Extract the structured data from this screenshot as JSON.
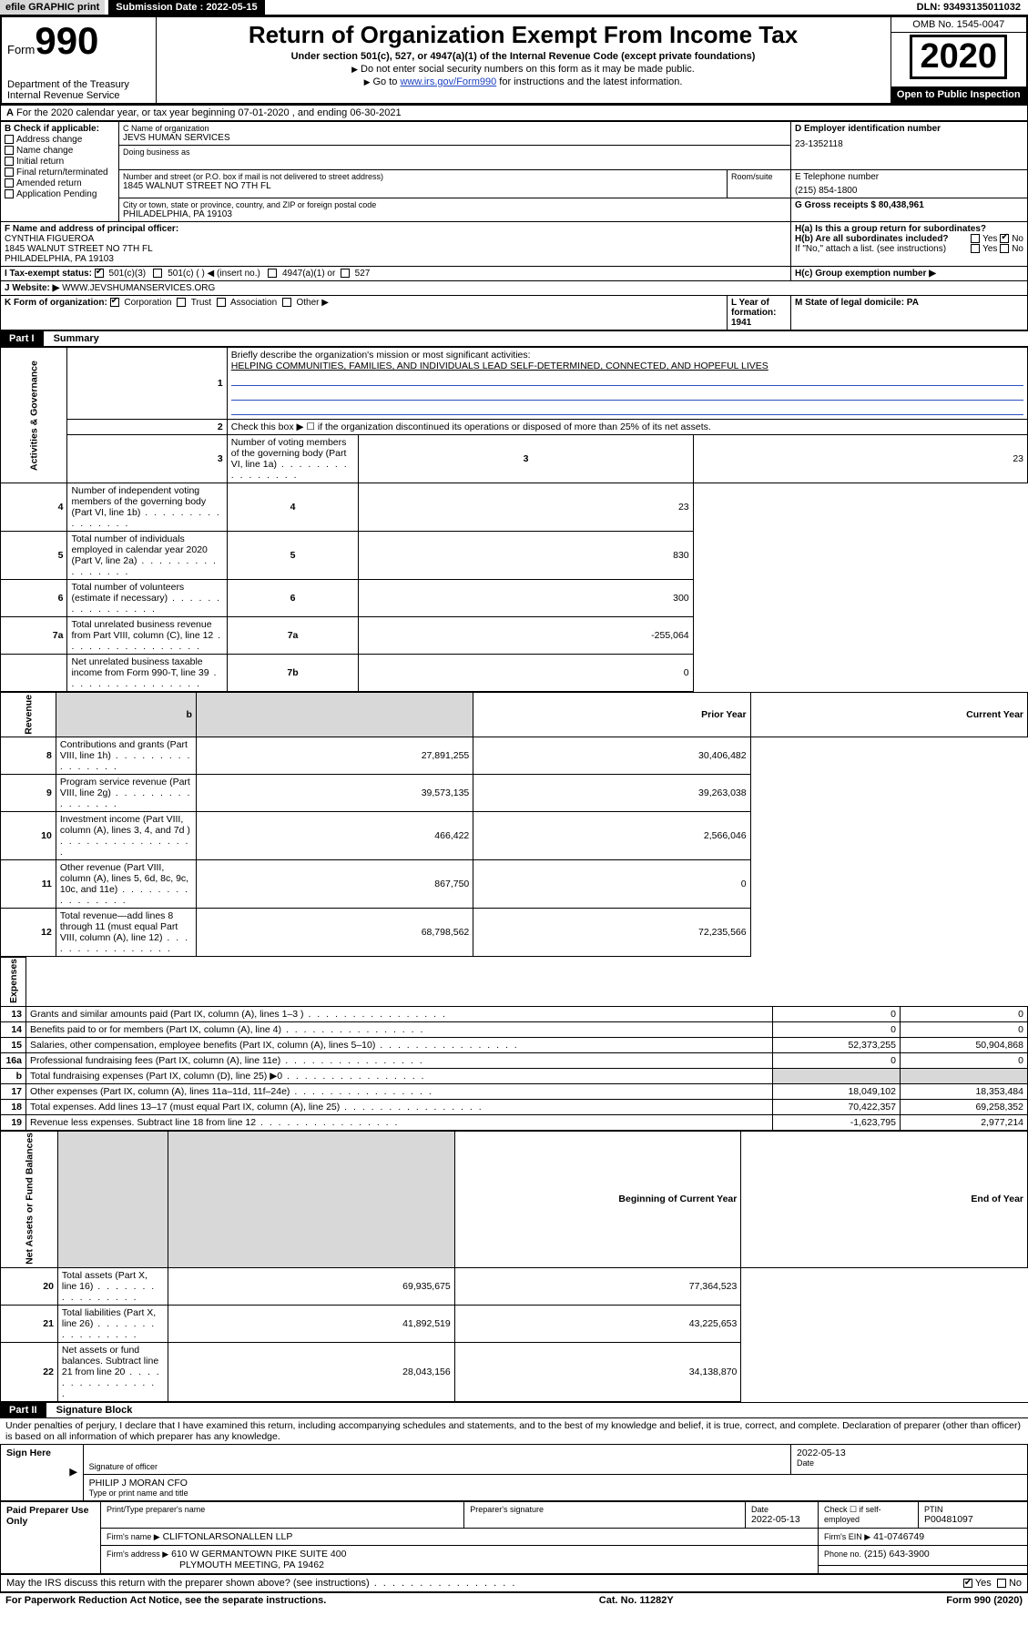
{
  "topbar": {
    "efile": "efile GRAPHIC print",
    "submission_label": "Submission Date : 2022-05-15",
    "dln": "DLN: 93493135011032"
  },
  "header": {
    "form_label": "Form",
    "form_number": "990",
    "dept": "Department of the Treasury",
    "irs": "Internal Revenue Service",
    "title": "Return of Organization Exempt From Income Tax",
    "subtitle": "Under section 501(c), 527, or 4947(a)(1) of the Internal Revenue Code (except private foundations)",
    "instr1": "Do not enter social security numbers on this form as it may be made public.",
    "instr2_pre": "Go to ",
    "instr2_link": "www.irs.gov/Form990",
    "instr2_post": " for instructions and the latest information.",
    "omb": "OMB No. 1545-0047",
    "year": "2020",
    "open": "Open to Public Inspection"
  },
  "line_a": "For the 2020 calendar year, or tax year beginning 07-01-2020    , and ending 06-30-2021",
  "box_b": {
    "label": "B Check if applicable:",
    "addr": "Address change",
    "name": "Name change",
    "init": "Initial return",
    "final": "Final return/terminated",
    "amend": "Amended return",
    "app": "Application Pending"
  },
  "box_c": {
    "name_lbl": "C Name of organization",
    "name": "JEVS HUMAN SERVICES",
    "dba_lbl": "Doing business as",
    "street_lbl": "Number and street (or P.O. box if mail is not delivered to street address)",
    "room_lbl": "Room/suite",
    "street": "1845 WALNUT STREET NO 7TH FL",
    "city_lbl": "City or town, state or province, country, and ZIP or foreign postal code",
    "city": "PHILADELPHIA, PA  19103"
  },
  "box_d": {
    "lbl": "D Employer identification number",
    "val": "23-1352118"
  },
  "box_e": {
    "lbl": "E Telephone number",
    "val": "(215) 854-1800"
  },
  "box_g": {
    "lbl": "G Gross receipts $ 80,438,961"
  },
  "box_f": {
    "lbl": "F  Name and address of principal officer:",
    "name": "CYNTHIA FIGUEROA",
    "addr1": "1845 WALNUT STREET NO 7TH FL",
    "addr2": "PHILADELPHIA, PA  19103"
  },
  "box_h": {
    "a": "H(a)  Is this a group return for subordinates?",
    "b": "H(b)  Are all subordinates included?",
    "note": "If \"No,\" attach a list. (see instructions)",
    "c": "H(c)  Group exemption number ▶"
  },
  "box_i": {
    "lbl": "I   Tax-exempt status:",
    "c3": "501(c)(3)",
    "c": "501(c) (   ) ◀ (insert no.)",
    "a1": "4947(a)(1) or",
    "s527": "527"
  },
  "box_j": {
    "lbl": "J   Website: ▶",
    "val": "  WWW.JEVSHUMANSERVICES.ORG"
  },
  "box_k": {
    "lbl": "K Form of organization:",
    "corp": "Corporation",
    "trust": "Trust",
    "assoc": "Association",
    "other": "Other ▶"
  },
  "box_l": {
    "lbl": "L Year of formation: 1941"
  },
  "box_m": {
    "lbl": "M State of legal domicile: PA"
  },
  "part1": {
    "hdr": "Part I",
    "title": "Summary"
  },
  "summary": {
    "q1": "Briefly describe the organization's mission or most significant activities:",
    "mission": "HELPING COMMUNITIES, FAMILIES, AND INDIVIDUALS LEAD SELF-DETERMINED, CONNECTED, AND HOPEFUL LIVES",
    "q2": "Check this box ▶ ☐  if the organization discontinued its operations or disposed of more than 25% of its net assets.",
    "rows_gov": [
      {
        "n": "3",
        "t": "Number of voting members of the governing body (Part VI, line 1a)",
        "l": "3",
        "v": "23"
      },
      {
        "n": "4",
        "t": "Number of independent voting members of the governing body (Part VI, line 1b)",
        "l": "4",
        "v": "23"
      },
      {
        "n": "5",
        "t": "Total number of individuals employed in calendar year 2020 (Part V, line 2a)",
        "l": "5",
        "v": "830"
      },
      {
        "n": "6",
        "t": "Total number of volunteers (estimate if necessary)",
        "l": "6",
        "v": "300"
      },
      {
        "n": "7a",
        "t": "Total unrelated business revenue from Part VIII, column (C), line 12",
        "l": "7a",
        "v": "-255,064"
      },
      {
        "n": "",
        "t": "Net unrelated business taxable income from Form 990-T, line 39",
        "l": "7b",
        "v": "0"
      }
    ],
    "col_prior": "Prior Year",
    "col_current": "Current Year",
    "rows_rev": [
      {
        "n": "8",
        "t": "Contributions and grants (Part VIII, line 1h)",
        "p": "27,891,255",
        "c": "30,406,482"
      },
      {
        "n": "9",
        "t": "Program service revenue (Part VIII, line 2g)",
        "p": "39,573,135",
        "c": "39,263,038"
      },
      {
        "n": "10",
        "t": "Investment income (Part VIII, column (A), lines 3, 4, and 7d )",
        "p": "466,422",
        "c": "2,566,046"
      },
      {
        "n": "11",
        "t": "Other revenue (Part VIII, column (A), lines 5, 6d, 8c, 9c, 10c, and 11e)",
        "p": "867,750",
        "c": "0"
      },
      {
        "n": "12",
        "t": "Total revenue—add lines 8 through 11 (must equal Part VIII, column (A), line 12)",
        "p": "68,798,562",
        "c": "72,235,566"
      }
    ],
    "rows_exp": [
      {
        "n": "13",
        "t": "Grants and similar amounts paid (Part IX, column (A), lines 1–3 )",
        "p": "0",
        "c": "0"
      },
      {
        "n": "14",
        "t": "Benefits paid to or for members (Part IX, column (A), line 4)",
        "p": "0",
        "c": "0"
      },
      {
        "n": "15",
        "t": "Salaries, other compensation, employee benefits (Part IX, column (A), lines 5–10)",
        "p": "52,373,255",
        "c": "50,904,868"
      },
      {
        "n": "16a",
        "t": "Professional fundraising fees (Part IX, column (A), line 11e)",
        "p": "0",
        "c": "0"
      },
      {
        "n": "b",
        "t": "Total fundraising expenses (Part IX, column (D), line 25) ▶0",
        "p": "",
        "c": "",
        "shade": true
      },
      {
        "n": "17",
        "t": "Other expenses (Part IX, column (A), lines 11a–11d, 11f–24e)",
        "p": "18,049,102",
        "c": "18,353,484"
      },
      {
        "n": "18",
        "t": "Total expenses. Add lines 13–17 (must equal Part IX, column (A), line 25)",
        "p": "70,422,357",
        "c": "69,258,352"
      },
      {
        "n": "19",
        "t": "Revenue less expenses. Subtract line 18 from line 12",
        "p": "-1,623,795",
        "c": "2,977,214"
      }
    ],
    "col_begin": "Beginning of Current Year",
    "col_end": "End of Year",
    "rows_net": [
      {
        "n": "20",
        "t": "Total assets (Part X, line 16)",
        "p": "69,935,675",
        "c": "77,364,523"
      },
      {
        "n": "21",
        "t": "Total liabilities (Part X, line 26)",
        "p": "41,892,519",
        "c": "43,225,653"
      },
      {
        "n": "22",
        "t": "Net assets or fund balances. Subtract line 21 from line 20",
        "p": "28,043,156",
        "c": "34,138,870"
      }
    ],
    "vlabels": {
      "gov": "Activities & Governance",
      "rev": "Revenue",
      "exp": "Expenses",
      "net": "Net Assets or Fund Balances"
    }
  },
  "part2": {
    "hdr": "Part II",
    "title": "Signature Block"
  },
  "sig": {
    "declare": "Under penalties of perjury, I declare that I have examined this return, including accompanying schedules and statements, and to the best of my knowledge and belief, it is true, correct, and complete. Declaration of preparer (other than officer) is based on all information of which preparer has any knowledge.",
    "sign_here": "Sign Here",
    "officer_sig": "Signature of officer",
    "date": "2022-05-13",
    "date_lbl": "Date",
    "officer_name": "PHILIP J MORAN CFO",
    "officer_type": "Type or print name and title",
    "paid": "Paid Preparer Use Only",
    "prep_name_lbl": "Print/Type preparer's name",
    "prep_sig_lbl": "Preparer's signature",
    "prep_date": "2022-05-13",
    "self_emp": "Check ☐ if self-employed",
    "ptin_lbl": "PTIN",
    "ptin": "P00481097",
    "firm_name_lbl": "Firm's name     ▶",
    "firm_name": "CLIFTONLARSONALLEN LLP",
    "firm_ein_lbl": "Firm's EIN ▶",
    "firm_ein": "41-0746749",
    "firm_addr_lbl": "Firm's address ▶",
    "firm_addr1": "610 W GERMANTOWN PIKE SUITE 400",
    "firm_addr2": "PLYMOUTH MEETING, PA  19462",
    "phone_lbl": "Phone no.",
    "phone": "(215) 643-3900",
    "discuss": "May the IRS discuss this return with the preparer shown above? (see instructions)",
    "yes": "Yes",
    "no": "No"
  },
  "footer": {
    "pra": "For Paperwork Reduction Act Notice, see the separate instructions.",
    "cat": "Cat. No. 11282Y",
    "form": "Form 990 (2020)"
  }
}
